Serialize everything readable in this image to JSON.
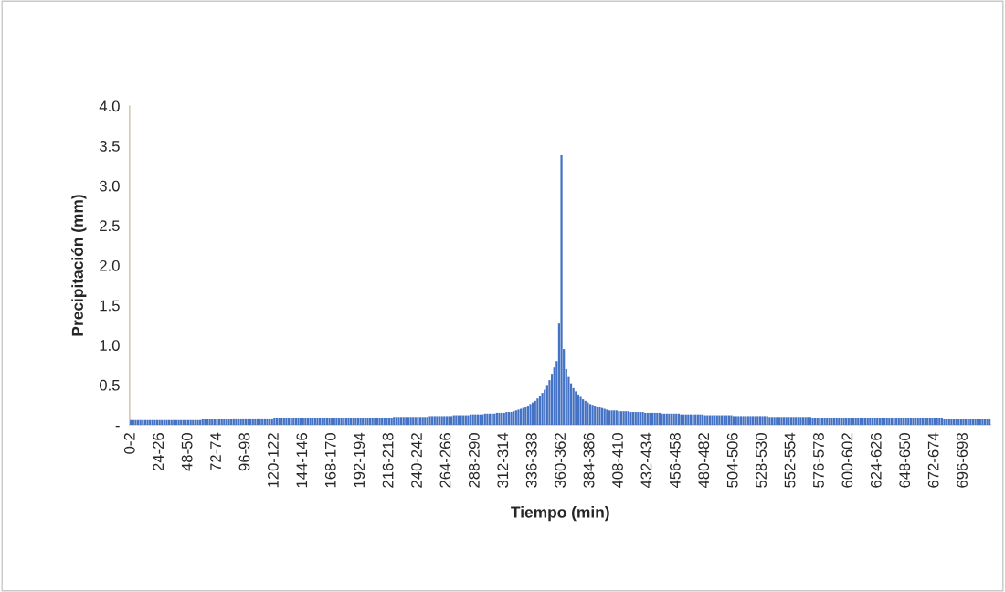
{
  "chart_data": {
    "type": "bar",
    "xlabel": "Tiempo (min)",
    "ylabel": "Precipitación (mm)",
    "categories": [
      "0-2",
      null,
      null,
      null,
      null,
      null,
      null,
      null,
      null,
      null,
      null,
      null,
      "24-26",
      null,
      null,
      null,
      null,
      null,
      null,
      null,
      null,
      null,
      null,
      null,
      "48-50",
      null,
      null,
      null,
      null,
      null,
      null,
      null,
      null,
      null,
      null,
      null,
      "72-74",
      null,
      null,
      null,
      null,
      null,
      null,
      null,
      null,
      null,
      null,
      null,
      "96-98",
      null,
      null,
      null,
      null,
      null,
      null,
      null,
      null,
      null,
      null,
      null,
      "120-122",
      null,
      null,
      null,
      null,
      null,
      null,
      null,
      null,
      null,
      null,
      null,
      "144-146",
      null,
      null,
      null,
      null,
      null,
      null,
      null,
      null,
      null,
      null,
      null,
      "168-170",
      null,
      null,
      null,
      null,
      null,
      null,
      null,
      null,
      null,
      null,
      null,
      "192-194",
      null,
      null,
      null,
      null,
      null,
      null,
      null,
      null,
      null,
      null,
      null,
      "216-218",
      null,
      null,
      null,
      null,
      null,
      null,
      null,
      null,
      null,
      null,
      null,
      "240-242",
      null,
      null,
      null,
      null,
      null,
      null,
      null,
      null,
      null,
      null,
      null,
      "264-266",
      null,
      null,
      null,
      null,
      null,
      null,
      null,
      null,
      null,
      null,
      null,
      "288-290",
      null,
      null,
      null,
      null,
      null,
      null,
      null,
      null,
      null,
      null,
      null,
      "312-314",
      null,
      null,
      null,
      null,
      null,
      null,
      null,
      null,
      null,
      null,
      null,
      "336-338",
      null,
      null,
      null,
      null,
      null,
      null,
      null,
      null,
      null,
      null,
      null,
      "360-362",
      null,
      null,
      null,
      null,
      null,
      null,
      null,
      null,
      null,
      null,
      null,
      "384-386",
      null,
      null,
      null,
      null,
      null,
      null,
      null,
      null,
      null,
      null,
      null,
      "408-410",
      null,
      null,
      null,
      null,
      null,
      null,
      null,
      null,
      null,
      null,
      null,
      "432-434",
      null,
      null,
      null,
      null,
      null,
      null,
      null,
      null,
      null,
      null,
      null,
      "456-458",
      null,
      null,
      null,
      null,
      null,
      null,
      null,
      null,
      null,
      null,
      null,
      "480-482",
      null,
      null,
      null,
      null,
      null,
      null,
      null,
      null,
      null,
      null,
      null,
      "504-506",
      null,
      null,
      null,
      null,
      null,
      null,
      null,
      null,
      null,
      null,
      null,
      "528-530",
      null,
      null,
      null,
      null,
      null,
      null,
      null,
      null,
      null,
      null,
      null,
      "552-554",
      null,
      null,
      null,
      null,
      null,
      null,
      null,
      null,
      null,
      null,
      null,
      "576-578",
      null,
      null,
      null,
      null,
      null,
      null,
      null,
      null,
      null,
      null,
      null,
      "600-602",
      null,
      null,
      null,
      null,
      null,
      null,
      null,
      null,
      null,
      null,
      null,
      "624-626",
      null,
      null,
      null,
      null,
      null,
      null,
      null,
      null,
      null,
      null,
      null,
      "648-650",
      null,
      null,
      null,
      null,
      null,
      null,
      null,
      null,
      null,
      null,
      null,
      "672-674",
      null,
      null,
      null,
      null,
      null,
      null,
      null,
      null,
      null,
      null,
      null,
      "696-698",
      null,
      null,
      null,
      null,
      null,
      null,
      null,
      null,
      null,
      null,
      null
    ],
    "values": [
      0.06,
      0.06,
      0.06,
      0.06,
      0.06,
      0.06,
      0.06,
      0.06,
      0.06,
      0.06,
      0.06,
      0.06,
      0.06,
      0.06,
      0.06,
      0.06,
      0.06,
      0.06,
      0.06,
      0.06,
      0.06,
      0.06,
      0.06,
      0.06,
      0.06,
      0.06,
      0.06,
      0.06,
      0.06,
      0.06,
      0.07,
      0.07,
      0.07,
      0.07,
      0.07,
      0.07,
      0.07,
      0.07,
      0.07,
      0.07,
      0.07,
      0.07,
      0.07,
      0.07,
      0.07,
      0.07,
      0.07,
      0.07,
      0.07,
      0.07,
      0.07,
      0.07,
      0.07,
      0.07,
      0.07,
      0.07,
      0.07,
      0.07,
      0.07,
      0.07,
      0.08,
      0.08,
      0.08,
      0.08,
      0.08,
      0.08,
      0.08,
      0.08,
      0.08,
      0.08,
      0.08,
      0.08,
      0.08,
      0.08,
      0.08,
      0.08,
      0.08,
      0.08,
      0.08,
      0.08,
      0.08,
      0.08,
      0.08,
      0.08,
      0.08,
      0.08,
      0.08,
      0.08,
      0.08,
      0.08,
      0.09,
      0.09,
      0.09,
      0.09,
      0.09,
      0.09,
      0.09,
      0.09,
      0.09,
      0.09,
      0.09,
      0.09,
      0.09,
      0.09,
      0.09,
      0.09,
      0.09,
      0.09,
      0.09,
      0.09,
      0.1,
      0.1,
      0.1,
      0.1,
      0.1,
      0.1,
      0.1,
      0.1,
      0.1,
      0.1,
      0.1,
      0.1,
      0.1,
      0.1,
      0.1,
      0.11,
      0.11,
      0.11,
      0.11,
      0.11,
      0.11,
      0.11,
      0.11,
      0.11,
      0.11,
      0.12,
      0.12,
      0.12,
      0.12,
      0.12,
      0.12,
      0.12,
      0.13,
      0.13,
      0.13,
      0.13,
      0.13,
      0.13,
      0.14,
      0.14,
      0.14,
      0.14,
      0.14,
      0.15,
      0.15,
      0.15,
      0.15,
      0.16,
      0.16,
      0.16,
      0.17,
      0.18,
      0.19,
      0.2,
      0.21,
      0.22,
      0.24,
      0.26,
      0.28,
      0.3,
      0.33,
      0.36,
      0.4,
      0.44,
      0.5,
      0.56,
      0.64,
      0.72,
      0.8,
      1.27,
      3.38,
      0.95,
      0.7,
      0.6,
      0.52,
      0.46,
      0.42,
      0.38,
      0.35,
      0.32,
      0.3,
      0.28,
      0.26,
      0.25,
      0.24,
      0.23,
      0.22,
      0.21,
      0.2,
      0.19,
      0.18,
      0.18,
      0.18,
      0.18,
      0.17,
      0.17,
      0.17,
      0.17,
      0.17,
      0.16,
      0.16,
      0.16,
      0.16,
      0.16,
      0.16,
      0.15,
      0.15,
      0.15,
      0.15,
      0.15,
      0.15,
      0.15,
      0.14,
      0.14,
      0.14,
      0.14,
      0.14,
      0.14,
      0.14,
      0.14,
      0.13,
      0.13,
      0.13,
      0.13,
      0.13,
      0.13,
      0.13,
      0.13,
      0.13,
      0.13,
      0.12,
      0.12,
      0.12,
      0.12,
      0.12,
      0.12,
      0.12,
      0.12,
      0.12,
      0.12,
      0.12,
      0.12,
      0.11,
      0.11,
      0.11,
      0.11,
      0.11,
      0.11,
      0.11,
      0.11,
      0.11,
      0.11,
      0.11,
      0.11,
      0.11,
      0.11,
      0.11,
      0.1,
      0.1,
      0.1,
      0.1,
      0.1,
      0.1,
      0.1,
      0.1,
      0.1,
      0.1,
      0.1,
      0.1,
      0.1,
      0.1,
      0.1,
      0.1,
      0.1,
      0.1,
      0.09,
      0.09,
      0.09,
      0.09,
      0.09,
      0.09,
      0.09,
      0.09,
      0.09,
      0.09,
      0.09,
      0.09,
      0.09,
      0.09,
      0.09,
      0.09,
      0.09,
      0.09,
      0.09,
      0.09,
      0.09,
      0.09,
      0.09,
      0.09,
      0.09,
      0.08,
      0.08,
      0.08,
      0.08,
      0.08,
      0.08,
      0.08,
      0.08,
      0.08,
      0.08,
      0.08,
      0.08,
      0.08,
      0.08,
      0.08,
      0.08,
      0.08,
      0.08,
      0.08,
      0.08,
      0.08,
      0.08,
      0.08,
      0.08,
      0.08,
      0.08,
      0.08,
      0.08,
      0.08,
      0.08,
      0.07,
      0.07,
      0.07,
      0.07,
      0.07,
      0.07,
      0.07,
      0.07,
      0.07,
      0.07,
      0.07,
      0.07,
      0.07,
      0.07,
      0.07,
      0.07,
      0.07,
      0.07,
      0.07,
      0.07
    ],
    "color": "#4472c4",
    "ylim": [
      0,
      4
    ],
    "yticks": [
      {
        "value": 0,
        "label": "-"
      },
      {
        "value": 0.5,
        "label": "0.5"
      },
      {
        "value": 1,
        "label": "1.0"
      },
      {
        "value": 1.5,
        "label": "1.5"
      },
      {
        "value": 2,
        "label": "2.0"
      },
      {
        "value": 2.5,
        "label": "2.5"
      },
      {
        "value": 3,
        "label": "3.0"
      },
      {
        "value": 3.5,
        "label": "3.5"
      },
      {
        "value": 4,
        "label": "4.0"
      }
    ],
    "grid": false
  }
}
